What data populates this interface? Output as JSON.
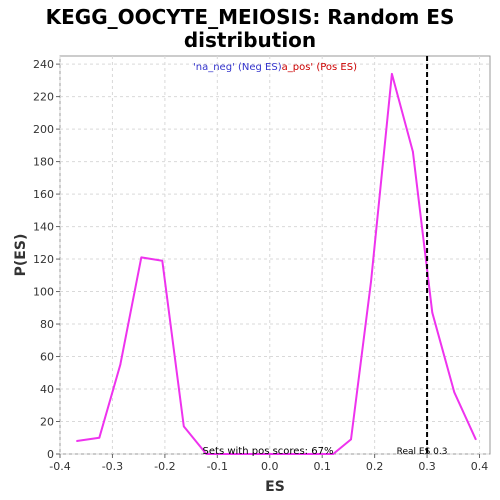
{
  "chart_data": {
    "type": "line",
    "title": "KEGG_OOCYTE_MEIOSIS: Random ES distribution",
    "title_lines": [
      "KEGG_OOCYTE_MEIOSIS: Random ES",
      "distribution"
    ],
    "xlabel": "ES",
    "ylabel": "P(ES)",
    "xlim": [
      -0.4,
      0.42
    ],
    "ylim": [
      0,
      245
    ],
    "x_ticks": [
      -0.4,
      -0.3,
      -0.2,
      -0.1,
      0.0,
      0.1,
      0.2,
      0.3,
      0.4
    ],
    "x_tick_labels": [
      "-0.4",
      "-0.3",
      "-0.2",
      "-0.1",
      "0.0",
      "0.1",
      "0.2",
      "0.3",
      "0.4"
    ],
    "y_ticks": [
      0,
      20,
      40,
      60,
      80,
      100,
      120,
      140,
      160,
      180,
      200,
      220,
      240
    ],
    "y_tick_labels": [
      "0",
      "20",
      "40",
      "60",
      "80",
      "100",
      "120",
      "140",
      "160",
      "180",
      "200",
      "220",
      "240"
    ],
    "grid": true,
    "legend": {
      "placement": "top-center",
      "neg_label": "'na_neg' (Neg ES)",
      "pos_label": "a_pos' (Pos ES)",
      "neg_color": "#3333cc",
      "pos_color": "#cc0000"
    },
    "series": [
      {
        "color": "#ee33ee",
        "x": [
          -0.368,
          -0.325,
          -0.285,
          -0.245,
          -0.205,
          -0.164,
          -0.121,
          -0.08,
          -0.039,
          0.0,
          0.04,
          0.08,
          0.121,
          0.155,
          0.193,
          0.233,
          0.273,
          0.31,
          0.352,
          0.393
        ],
        "y": [
          8,
          10,
          55,
          121,
          119,
          17,
          0,
          0,
          0,
          0,
          0,
          0,
          0,
          9,
          106,
          234,
          186,
          87,
          38,
          9
        ]
      }
    ],
    "reference_line": {
      "x": 0.3,
      "label": "Real ES 0.3",
      "color": "#000000"
    },
    "annotation": "Sets with pos scores: 67%"
  }
}
